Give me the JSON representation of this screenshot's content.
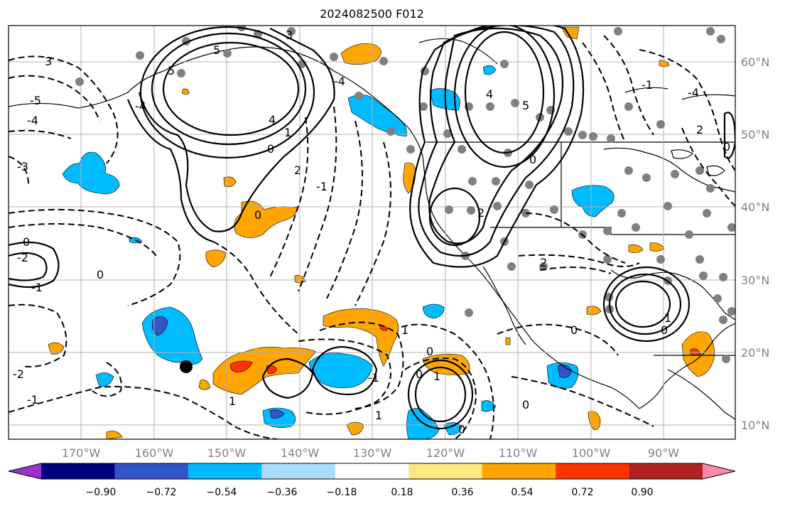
{
  "title": "2024082500 F012",
  "lon_ticks": [
    "170°W",
    "160°W",
    "150°W",
    "140°W",
    "130°W",
    "120°W",
    "110°W",
    "100°W",
    "90°W"
  ],
  "lat_ticks": [
    "60°N",
    "50°N",
    "40°N",
    "30°N",
    "20°N",
    "10°N"
  ],
  "colorbar": {
    "tick_labels": [
      "−0.90",
      "−0.72",
      "−0.54",
      "−0.36",
      "−0.18",
      "0.18",
      "0.36",
      "0.54",
      "0.72",
      "0.90"
    ],
    "colors": [
      "#9933cc",
      "#000080",
      "#3355cc",
      "#00bbff",
      "#aaddff",
      "#ffffff",
      "#ffe680",
      "#ffa500",
      "#ff3300",
      "#b22222",
      "#ff88aa"
    ]
  },
  "contour_labels": [
    {
      "text": "3"
    },
    {
      "text": "-5"
    },
    {
      "text": "-4"
    },
    {
      "text": "-3"
    },
    {
      "text": "5"
    },
    {
      "text": "4"
    },
    {
      "text": "1"
    },
    {
      "text": "0"
    },
    {
      "text": "2"
    },
    {
      "text": "-1"
    },
    {
      "text": "-2"
    },
    {
      "text": "1"
    },
    {
      "text": "0"
    },
    {
      "text": "2"
    },
    {
      "text": "-1"
    },
    {
      "text": "0"
    },
    {
      "text": "-1"
    },
    {
      "text": "2"
    },
    {
      "text": "-2"
    },
    {
      "text": "-1"
    },
    {
      "text": "0"
    },
    {
      "text": "-1"
    },
    {
      "text": "0"
    },
    {
      "text": "1"
    },
    {
      "text": "-2"
    },
    {
      "text": "2"
    },
    {
      "text": "-1"
    },
    {
      "text": "-1"
    },
    {
      "text": "0"
    },
    {
      "text": "1"
    },
    {
      "text": "1"
    },
    {
      "text": "-2"
    },
    {
      "text": "5"
    },
    {
      "text": "-1"
    },
    {
      "text": "4"
    }
  ],
  "colors": {
    "land_outline": "#000000",
    "grid": "#b0b0b0",
    "station_dot": "#808080"
  }
}
